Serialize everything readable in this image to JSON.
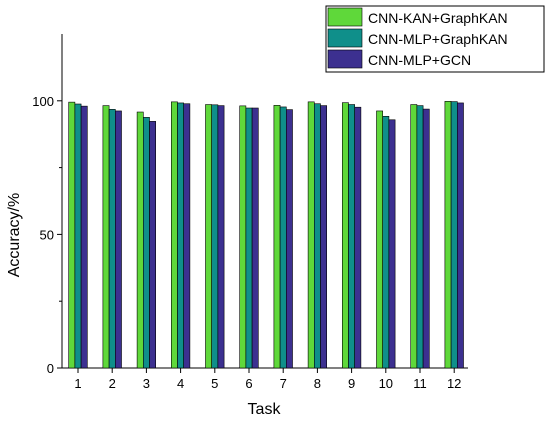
{
  "chart_data": {
    "type": "bar",
    "xlabel": "Task",
    "ylabel": "Accuracy/%",
    "ylim": [
      0,
      125
    ],
    "yticks": [
      0,
      50,
      100
    ],
    "categories": [
      "1",
      "2",
      "3",
      "4",
      "5",
      "6",
      "7",
      "8",
      "9",
      "10",
      "11",
      "12"
    ],
    "series": [
      {
        "name": "CNN-KAN+GraphKAN",
        "color": "#5fd83a",
        "values": [
          99.5,
          98.2,
          95.8,
          99.6,
          98.6,
          98.1,
          98.3,
          99.6,
          99.3,
          96.2,
          98.6,
          99.8
        ]
      },
      {
        "name": "CNN-MLP+GraphKAN",
        "color": "#0f8f8a",
        "values": [
          98.8,
          96.8,
          93.8,
          99.2,
          98.5,
          97.3,
          97.7,
          98.9,
          98.6,
          94.2,
          98.2,
          99.7
        ]
      },
      {
        "name": "CNN-MLP+GCN",
        "color": "#3c3090",
        "values": [
          98.0,
          96.2,
          92.3,
          98.9,
          98.2,
          97.3,
          96.7,
          98.2,
          97.6,
          92.9,
          96.9,
          99.2
        ]
      }
    ],
    "legend_position": "top-right",
    "grid": false
  }
}
